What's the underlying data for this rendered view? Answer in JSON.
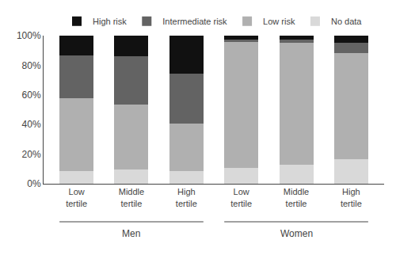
{
  "chart_data": {
    "type": "bar",
    "stacked": true,
    "grid": false,
    "legend": "top",
    "categories": [
      "Low\ntertile",
      "Middle\ntertile",
      "High\ntertile",
      "Low\ntertile",
      "Middle\ntertile",
      "High\ntertile"
    ],
    "groups": [
      "Men",
      "Men",
      "Men",
      "Women",
      "Women",
      "Women"
    ],
    "series": [
      {
        "name": "No data",
        "color": "#d9d9d9",
        "values": [
          8.6,
          9.4,
          8.8,
          10.7,
          12.7,
          16.7
        ]
      },
      {
        "name": "Low risk",
        "color": "#b0b0b0",
        "values": [
          49.0,
          44.2,
          32.0,
          84.8,
          82.3,
          71.7
        ]
      },
      {
        "name": "Intermediate risk",
        "color": "#636363",
        "values": [
          29.1,
          32.4,
          33.8,
          1.8,
          2.1,
          6.8
        ]
      },
      {
        "name": "High risk",
        "color": "#111111",
        "values": [
          13.3,
          14.0,
          25.4,
          2.7,
          2.9,
          4.8
        ]
      }
    ],
    "ylim": [
      0,
      100
    ],
    "yticks": [
      {
        "value": 0,
        "label": "0%"
      },
      {
        "value": 20,
        "label": "20%"
      },
      {
        "value": 40,
        "label": "40%"
      },
      {
        "value": 60,
        "label": "60%"
      },
      {
        "value": 80,
        "label": "80%"
      },
      {
        "value": 100,
        "label": "100%"
      }
    ]
  }
}
